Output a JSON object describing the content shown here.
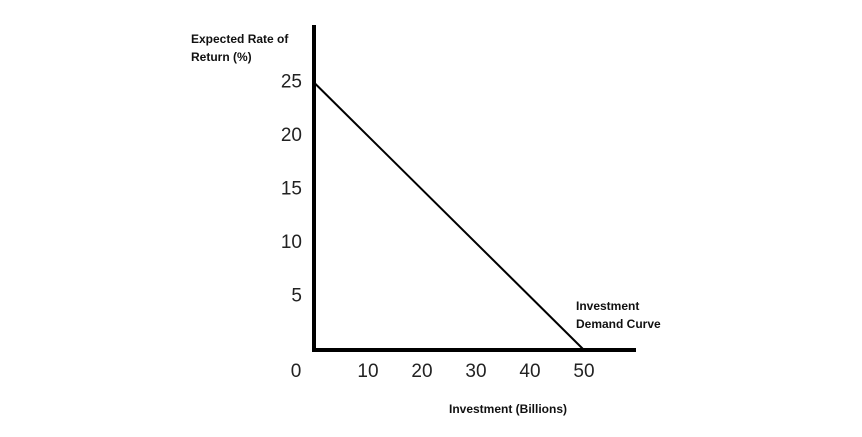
{
  "chart_data": {
    "type": "line",
    "ylabel": [
      "Expected Rate of",
      "Return (%)"
    ],
    "xlabel": "Investment (Billions)",
    "annotation": [
      "Investment",
      "Demand Curve"
    ],
    "x": [
      0,
      50
    ],
    "series": [
      {
        "color": "#000000",
        "values": [
          25,
          0
        ]
      }
    ],
    "xlim": [
      0,
      60
    ],
    "ylim": [
      0,
      30
    ],
    "xticks": [
      0,
      10,
      20,
      30,
      40,
      50
    ],
    "yticks": [
      5,
      10,
      15,
      20,
      25
    ],
    "grid": false
  }
}
